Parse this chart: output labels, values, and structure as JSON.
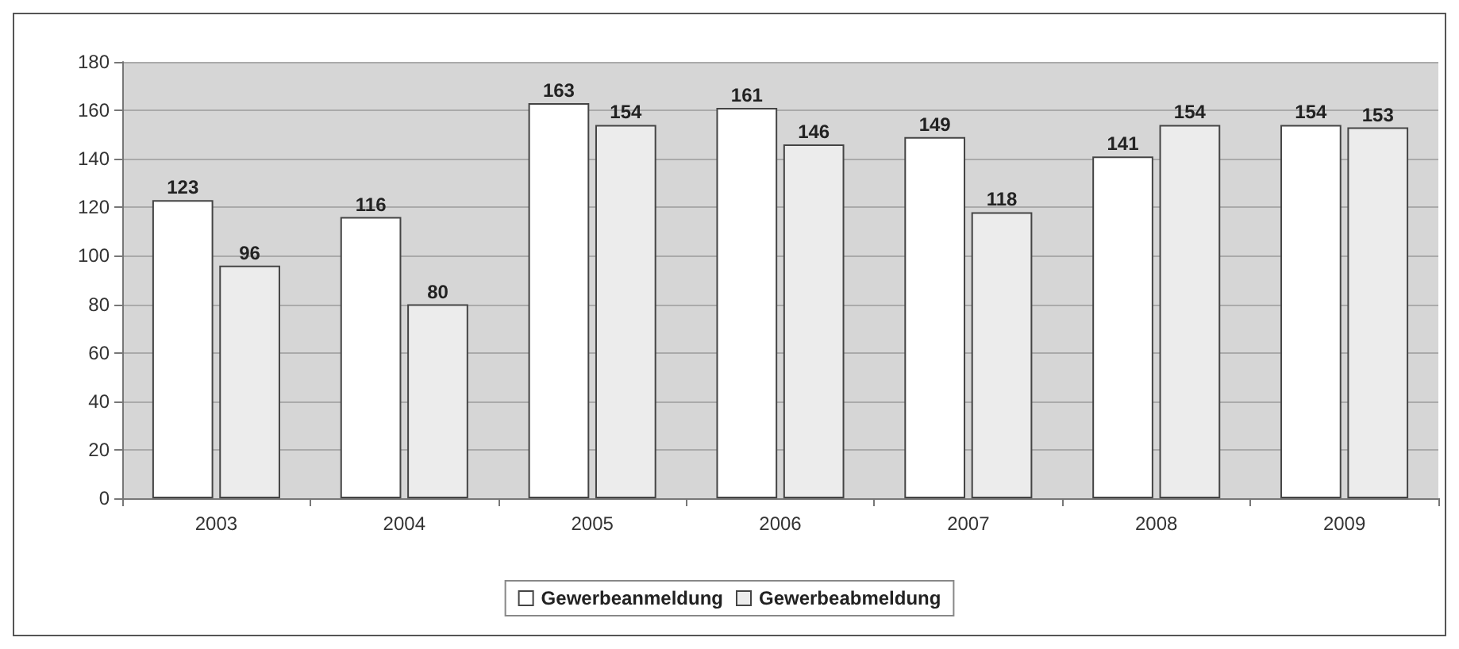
{
  "chart_data": {
    "type": "bar",
    "categories": [
      "2003",
      "2004",
      "2005",
      "2006",
      "2007",
      "2008",
      "2009"
    ],
    "series": [
      {
        "name": "Gewerbeanmeldung",
        "color": "#ffffff",
        "values": [
          123,
          116,
          163,
          161,
          149,
          141,
          154
        ]
      },
      {
        "name": "Gewerbeabmeldung",
        "color": "#ececec",
        "values": [
          96,
          80,
          154,
          146,
          118,
          154,
          153
        ]
      }
    ],
    "ylim": [
      0,
      180
    ],
    "yticks": [
      0,
      20,
      40,
      60,
      80,
      100,
      120,
      140,
      160,
      180
    ],
    "grid": "y",
    "legend": "bottom",
    "data_labels": true
  }
}
